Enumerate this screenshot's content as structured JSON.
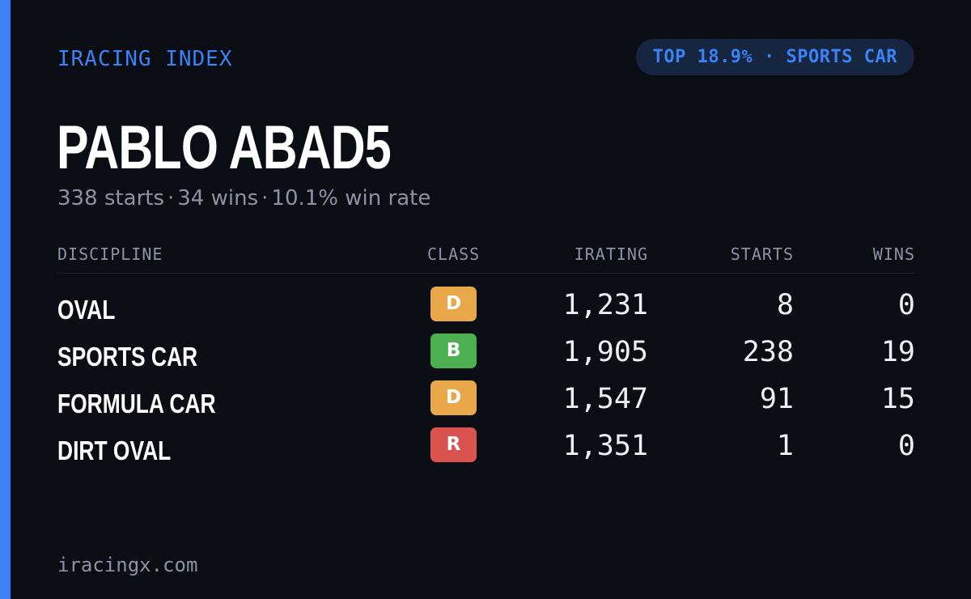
{
  "header": {
    "brand": "IRACING INDEX",
    "rank_badge": "TOP 18.9% · SPORTS CAR"
  },
  "driver": {
    "name": "PABLO ABAD5",
    "starts": "338 starts",
    "wins": "34 wins",
    "win_rate": "10.1% win rate",
    "separator": "·"
  },
  "table": {
    "columns": {
      "discipline": "DISCIPLINE",
      "class": "CLASS",
      "irating": "IRATING",
      "starts": "STARTS",
      "wins": "WINS"
    },
    "rows": [
      {
        "discipline": "OVAL",
        "class": "D",
        "class_color": "#e8a84a",
        "irating": "1,231",
        "starts": "8",
        "wins": "0"
      },
      {
        "discipline": "SPORTS CAR",
        "class": "B",
        "class_color": "#4caf50",
        "irating": "1,905",
        "starts": "238",
        "wins": "19"
      },
      {
        "discipline": "FORMULA CAR",
        "class": "D",
        "class_color": "#e8a84a",
        "irating": "1,547",
        "starts": "91",
        "wins": "15"
      },
      {
        "discipline": "DIRT OVAL",
        "class": "R",
        "class_color": "#d9534f",
        "irating": "1,351",
        "starts": "1",
        "wins": "0"
      }
    ]
  },
  "footer": {
    "site": "iracingx.com"
  },
  "colors": {
    "background": "#0a0d14",
    "accent": "#3b82f6",
    "badge_background": "#162540",
    "muted_text": "#8b93a3"
  }
}
